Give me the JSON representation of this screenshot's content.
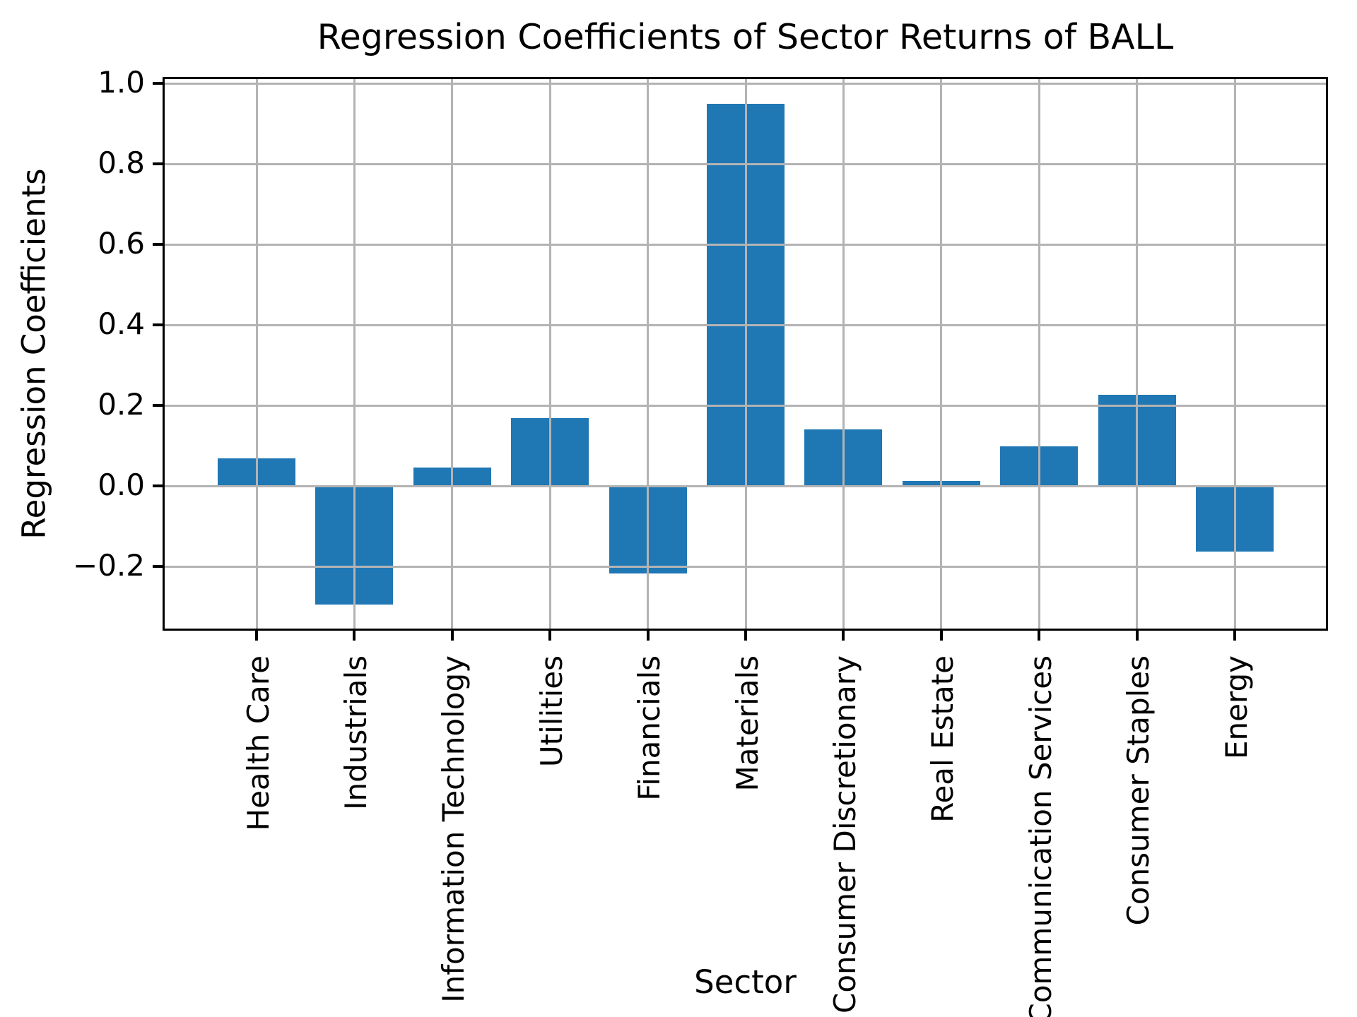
{
  "figure": {
    "title": "Regression Coefficients of Sector Returns of BALL",
    "xlabel": "Sector",
    "ylabel": "Regression Coefficients"
  },
  "chart_data": {
    "type": "bar",
    "title": "Regression Coefficients of Sector Returns of BALL",
    "xlabel": "Sector",
    "ylabel": "Regression Coefficients",
    "categories": [
      "Health Care",
      "Industrials",
      "Information Technology",
      "Utilities",
      "Financials",
      "Materials",
      "Consumer Discretionary",
      "Real Estate",
      "Communication Services",
      "Consumer Staples",
      "Energy"
    ],
    "values": [
      0.068,
      -0.295,
      0.046,
      0.168,
      -0.218,
      0.949,
      0.141,
      0.013,
      0.099,
      0.226,
      -0.163
    ],
    "ytick_labels": [
      "1.0",
      "0.8",
      "0.6",
      "0.4",
      "0.2",
      "0.0",
      "−0.2"
    ],
    "yticks": [
      1.0,
      0.8,
      0.6,
      0.4,
      0.2,
      0.0,
      -0.2
    ],
    "ylim": [
      -0.354,
      1.011
    ],
    "xtick_rotation": 90,
    "grid": true,
    "legend": "none",
    "bar_color": "#1f77b4",
    "grid_color": "#b3b3b3",
    "background_color": "#ffffff",
    "spine_color": "#000000"
  }
}
